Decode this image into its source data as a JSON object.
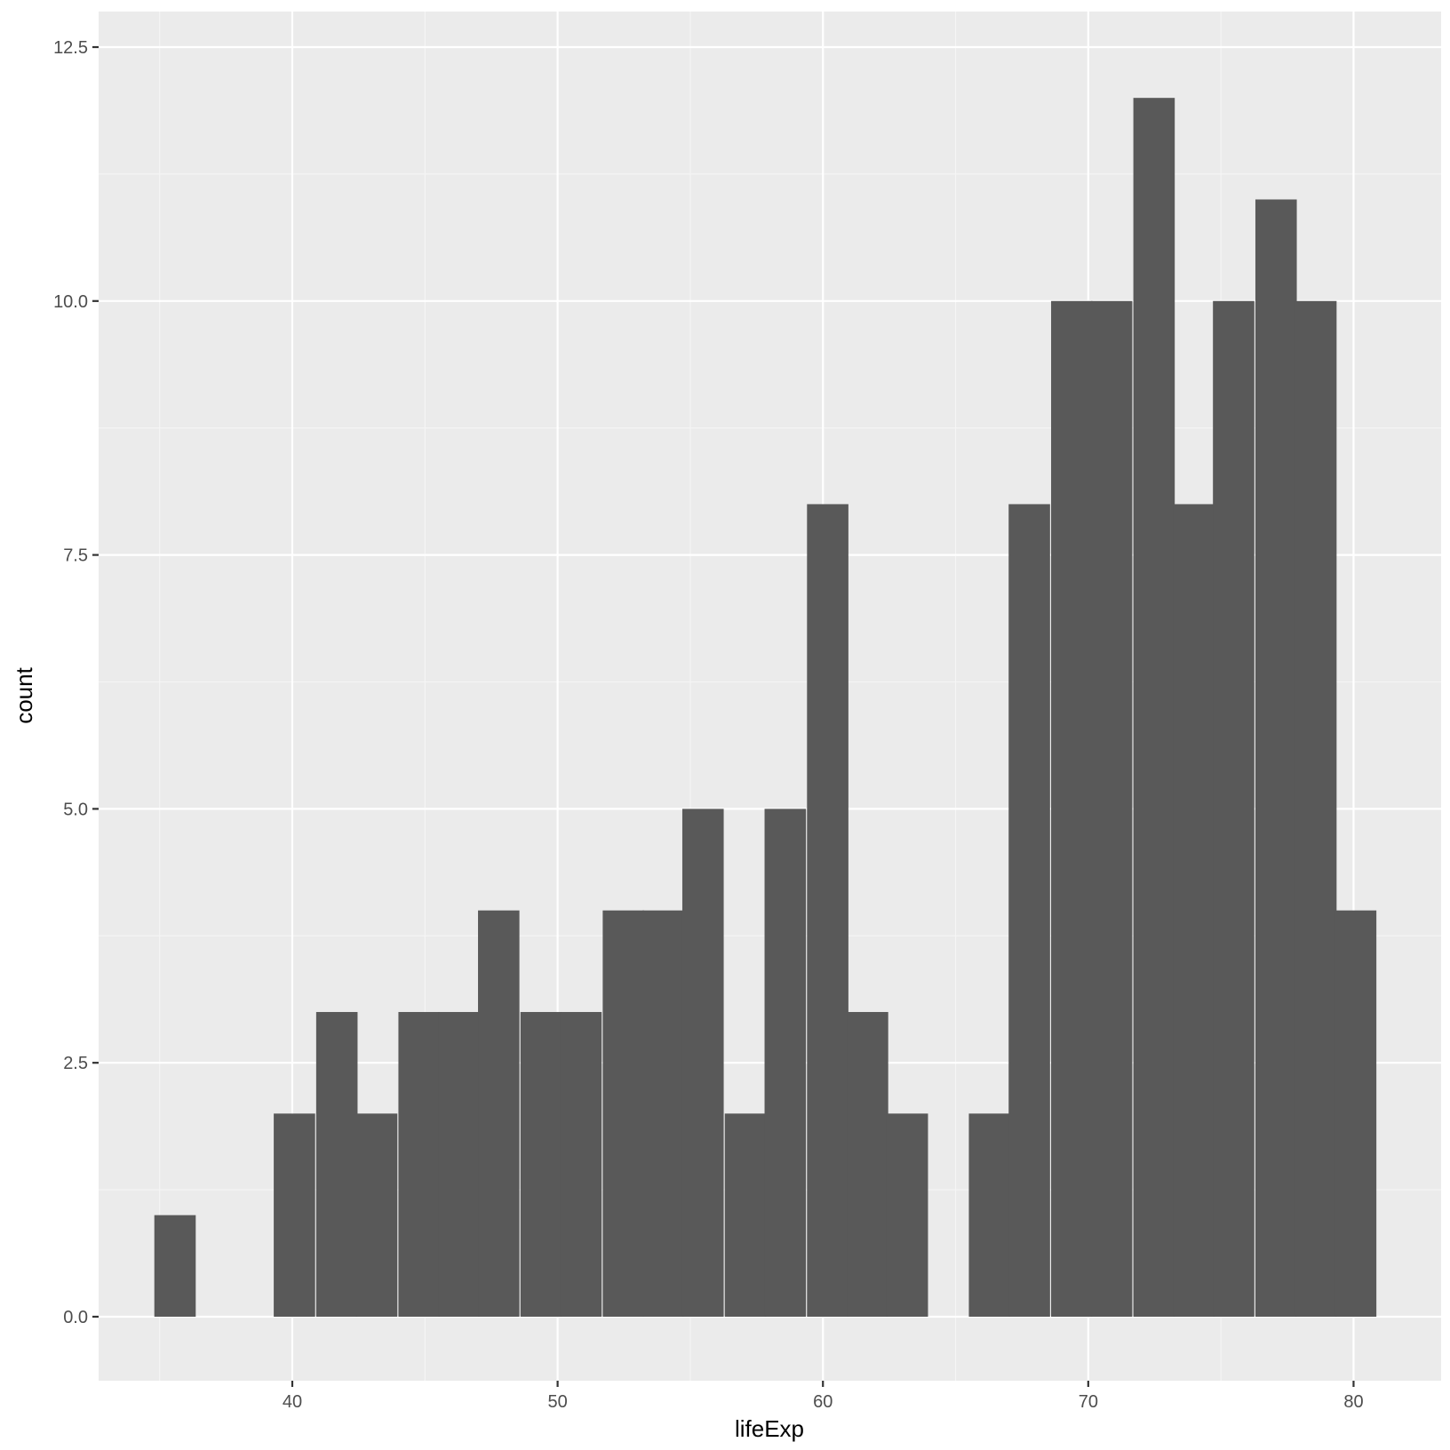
{
  "chart_data": {
    "type": "bar",
    "title": "",
    "xlabel": "lifeExp",
    "ylabel": "count",
    "xlim": [
      32.7,
      83.3
    ],
    "ylim": [
      -0.63,
      12.85
    ],
    "x_ticks": [
      40,
      50,
      60,
      70,
      80
    ],
    "x_tick_labels": [
      "40",
      "50",
      "60",
      "70",
      "80"
    ],
    "y_ticks": [
      0,
      2.5,
      5,
      7.5,
      10,
      12.5
    ],
    "y_tick_labels": [
      "0.0",
      "2.5",
      "5.0",
      "7.5",
      "10.0",
      "12.5"
    ],
    "grid": true,
    "bin_width": 1.54,
    "bins": [
      {
        "x0": 34.8,
        "count": 1
      },
      {
        "x0": 36.3,
        "count": 0
      },
      {
        "x0": 37.8,
        "count": 0
      },
      {
        "x0": 39.3,
        "count": 2
      },
      {
        "x0": 40.9,
        "count": 3
      },
      {
        "x0": 42.4,
        "count": 2
      },
      {
        "x0": 44.0,
        "count": 3
      },
      {
        "x0": 45.5,
        "count": 3
      },
      {
        "x0": 47.0,
        "count": 4
      },
      {
        "x0": 48.6,
        "count": 3
      },
      {
        "x0": 50.1,
        "count": 3
      },
      {
        "x0": 51.7,
        "count": 4
      },
      {
        "x0": 53.2,
        "count": 4
      },
      {
        "x0": 54.7,
        "count": 5
      },
      {
        "x0": 56.3,
        "count": 2
      },
      {
        "x0": 57.8,
        "count": 5
      },
      {
        "x0": 59.4,
        "count": 8
      },
      {
        "x0": 60.9,
        "count": 3
      },
      {
        "x0": 62.4,
        "count": 2
      },
      {
        "x0": 64.0,
        "count": 0
      },
      {
        "x0": 65.5,
        "count": 2
      },
      {
        "x0": 67.0,
        "count": 8
      },
      {
        "x0": 68.6,
        "count": 10
      },
      {
        "x0": 70.1,
        "count": 10
      },
      {
        "x0": 71.7,
        "count": 12
      },
      {
        "x0": 73.2,
        "count": 8
      },
      {
        "x0": 74.7,
        "count": 10
      },
      {
        "x0": 76.3,
        "count": 11
      },
      {
        "x0": 77.8,
        "count": 10
      },
      {
        "x0": 79.3,
        "count": 4
      }
    ],
    "colors": {
      "panel_background": "#ebebeb",
      "grid_major": "#ffffff",
      "grid_minor": "#f5f5f5",
      "bar_fill": "#595959",
      "tick_text": "#4d4d4d",
      "axis_title_text": "#000000",
      "tick_mark": "#333333"
    }
  }
}
